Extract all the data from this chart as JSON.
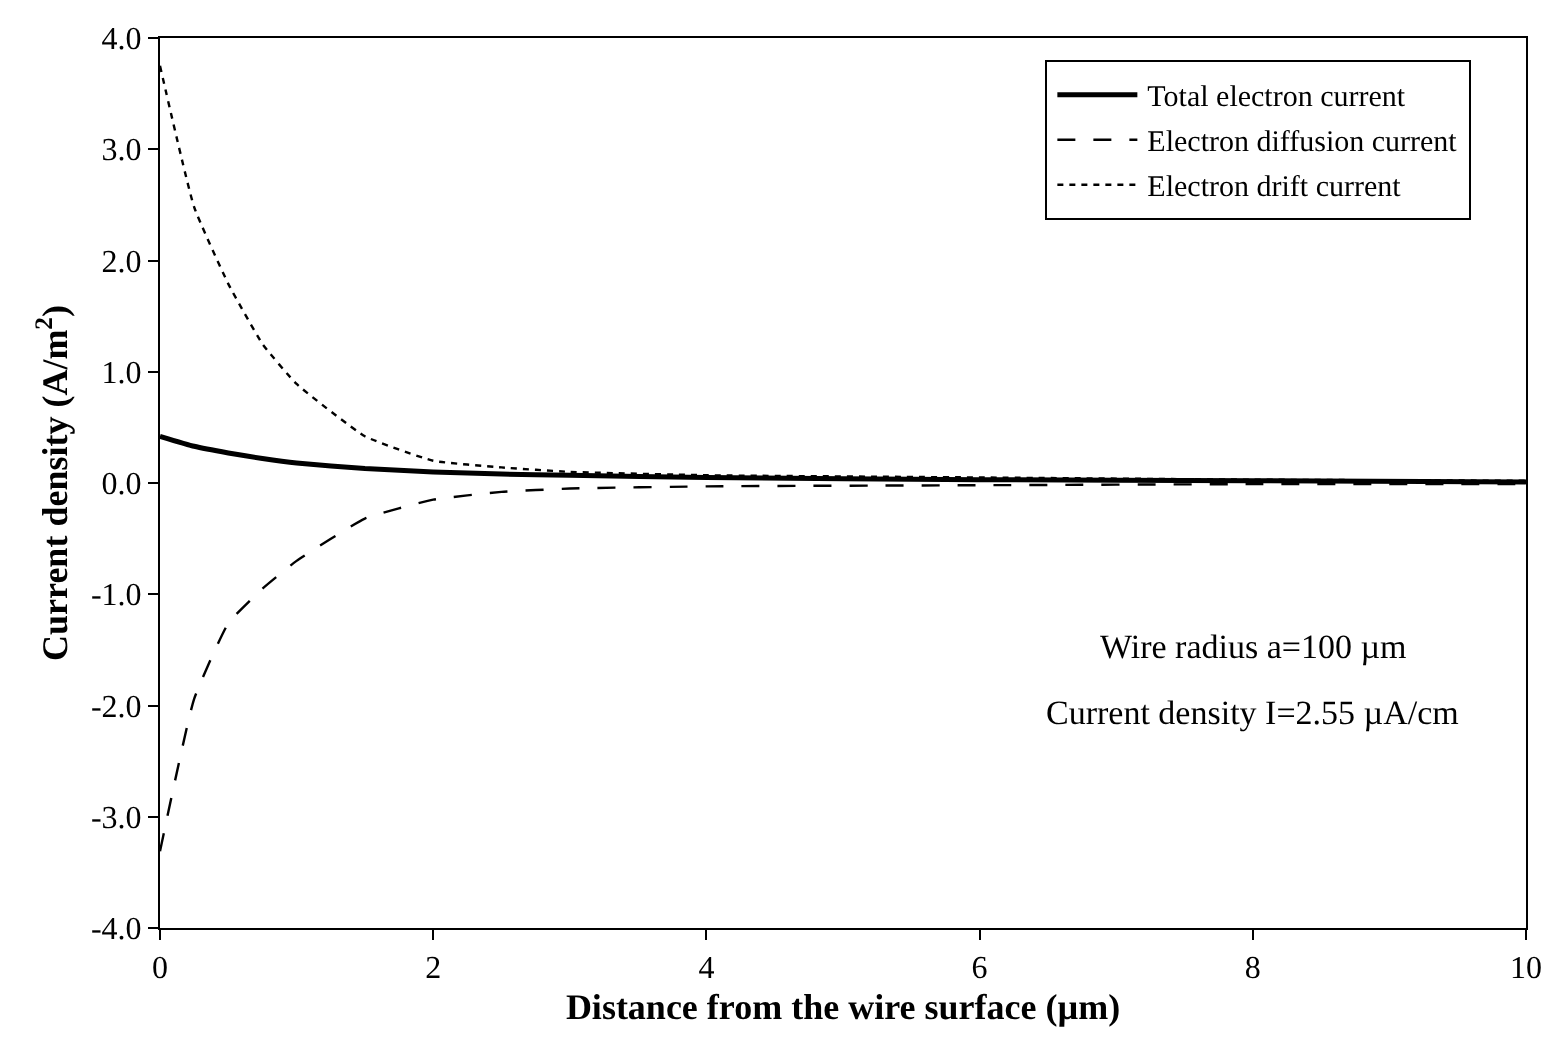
{
  "chart_data": {
    "type": "line",
    "xlabel": "Distance from the wire surface (µm)",
    "ylabel": "Current density (A/m$^{2}$)",
    "xlim": [
      0,
      10
    ],
    "xticks": [
      0,
      2,
      4,
      6,
      8,
      10
    ],
    "ylim": [
      -4,
      4
    ],
    "yticks": [
      {
        "value": -4,
        "label": "-4.0"
      },
      {
        "value": -3,
        "label": "-3.0"
      },
      {
        "value": -2,
        "label": "-2.0"
      },
      {
        "value": -1,
        "label": "-1.0"
      },
      {
        "value": 0,
        "label": "0.0"
      },
      {
        "value": 1,
        "label": "1.0"
      },
      {
        "value": 2,
        "label": "2.0"
      },
      {
        "value": 3,
        "label": "3.0"
      },
      {
        "value": 4,
        "label": "4.0"
      }
    ],
    "legend": "top right",
    "marker": "none",
    "x": [
      0,
      0.25,
      0.5,
      0.75,
      1,
      1.5,
      2,
      2.5,
      3,
      4,
      6,
      8,
      10
    ],
    "series": [
      {
        "name": "Total electron current",
        "color": "#000000",
        "line_style": "solid",
        "values": [
          0.42,
          0.33,
          0.27,
          0.22,
          0.18,
          0.13,
          0.1,
          0.08,
          0.07,
          0.05,
          0.03,
          0.02,
          0.01
        ]
      },
      {
        "name": "Electron diffusion current",
        "color": "#000000",
        "line_style": "dashed",
        "values": [
          -3.31,
          -1.94,
          -1.26,
          -0.95,
          -0.7,
          -0.32,
          -0.15,
          -0.08,
          -0.05,
          -0.03,
          -0.02,
          -0.01,
          -0.01
        ]
      },
      {
        "name": "Electron drift current",
        "color": "#000000",
        "line_style": "dotted",
        "values": [
          3.75,
          2.48,
          1.79,
          1.25,
          0.89,
          0.42,
          0.2,
          0.14,
          0.1,
          0.07,
          0.05,
          0.03,
          0.02
        ]
      }
    ],
    "annotations": [
      "Wire radius a=100 µm",
      "Current density I=2.55 µA/cm"
    ]
  }
}
